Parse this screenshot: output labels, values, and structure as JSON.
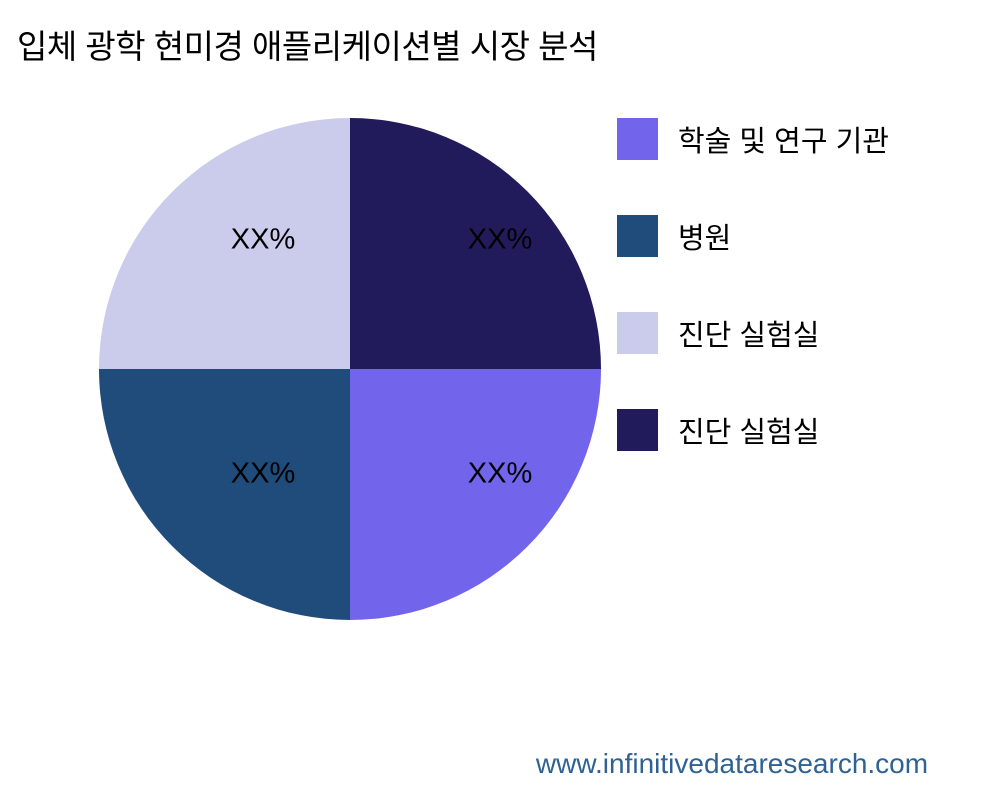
{
  "title": "입체 광학 현미경 애플리케이션별 시장 분석",
  "footer": {
    "url": "www.infinitivedataresearch.com",
    "color": "#2F6292"
  },
  "chart_data": {
    "type": "pie",
    "title": "입체 광학 현미경 애플리케이션별 시장 분석",
    "start_angle_deg": 90,
    "direction": "clockwise",
    "legend_position": "right",
    "slice_label_color": "#000000",
    "background_color": "#FFFFFF",
    "slices": [
      {
        "label": "학술 및 연구 기관",
        "value_label": "XX%",
        "percent": 25,
        "color": "#7265EB",
        "position": "bottom-right"
      },
      {
        "label": "병원",
        "value_label": "XX%",
        "percent": 25,
        "color": "#204C7C",
        "position": "bottom-left"
      },
      {
        "label": "진단 실험실",
        "value_label": "XX%",
        "percent": 25,
        "color": "#CBCBEC",
        "position": "top-left"
      },
      {
        "label": "진단 실험실",
        "value_label": "XX%",
        "percent": 25,
        "color": "#221B5B",
        "position": "top-right"
      }
    ]
  }
}
